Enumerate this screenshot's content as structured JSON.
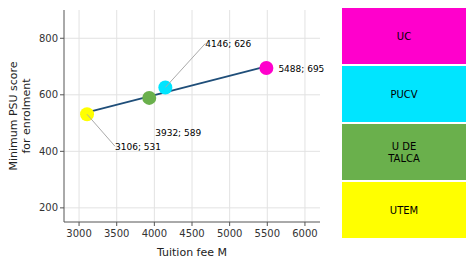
{
  "chart_data": {
    "type": "scatter",
    "xlabel": "Tuition fee M",
    "ylabel": "Minimum PSU score\nfor enrolment",
    "xlim": [
      2800,
      6200
    ],
    "ylim": [
      150,
      900
    ],
    "xticks": [
      3000,
      3500,
      4000,
      4500,
      5000,
      5500,
      6000
    ],
    "yticks": [
      200,
      400,
      600,
      800
    ],
    "grid": true,
    "legend": "right",
    "series": [
      {
        "type": "line",
        "color": "#1f4e79",
        "x": [
          3106,
          5488
        ],
        "values": [
          537.415,
          700.779
        ]
      },
      {
        "type": "scatter",
        "name": "UTEM",
        "color": "#ffff00",
        "x": [
          3106
        ],
        "values": [
          531
        ]
      },
      {
        "type": "scatter",
        "name": "U DE\nTALCA",
        "color": "#6ab04c",
        "x": [
          3932
        ],
        "values": [
          589
        ]
      },
      {
        "type": "scatter",
        "name": "PUCV",
        "color": "#00e5ff",
        "x": [
          4146
        ],
        "values": [
          626
        ]
      },
      {
        "type": "scatter",
        "name": "UC",
        "color": "#ff00cc",
        "x": [
          5488
        ],
        "values": [
          695
        ]
      }
    ],
    "annotations": [
      "3106; 531",
      "3932; 589",
      "4146; 626",
      "5488; 695"
    ]
  }
}
